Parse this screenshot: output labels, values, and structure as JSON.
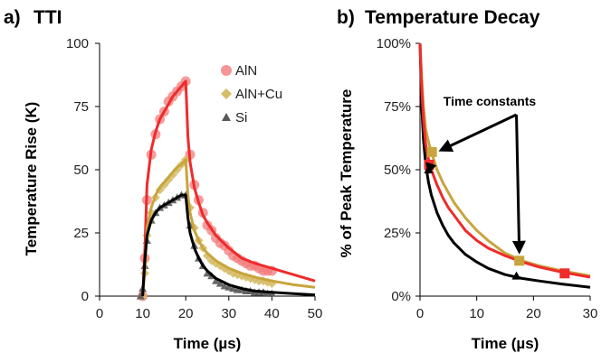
{
  "colors": {
    "AlN": "#ef2b2b",
    "AlN_marker": "#f27b7b",
    "AlN_Cu": "#c8a53c",
    "AlN_Cu_marker": "#d6bd68",
    "Si": "#000000",
    "Si_marker": "#595959"
  },
  "chart_data": [
    {
      "type": "scatter",
      "panel_label": "a)",
      "title": "TTI",
      "xlabel": "Time (µs)",
      "ylabel": "Temperature Rise (K)",
      "xlim": [
        0,
        50
      ],
      "ylim": [
        0,
        100
      ],
      "xticks": [
        "0",
        "10",
        "20",
        "30",
        "40",
        "50"
      ],
      "yticks": [
        "0",
        "25",
        "50",
        "75",
        "100"
      ],
      "grid": false,
      "legend_position": "top-right",
      "legend": [
        "AlN",
        "AlN+Cu",
        "Si"
      ],
      "series": [
        {
          "name": "AlN",
          "marker": "circle",
          "points": [
            [
              10,
              0
            ],
            [
              10.5,
              15
            ],
            [
              11,
              38
            ],
            [
              12,
              56
            ],
            [
              13,
              64
            ],
            [
              14,
              70
            ],
            [
              15,
              73
            ],
            [
              16,
              77
            ],
            [
              17,
              79
            ],
            [
              18,
              81
            ],
            [
              19,
              83
            ],
            [
              20,
              85
            ],
            [
              21,
              56
            ],
            [
              22,
              44
            ],
            [
              23,
              38
            ],
            [
              24,
              33
            ],
            [
              25,
              28
            ],
            [
              26,
              26
            ],
            [
              27,
              23
            ],
            [
              28,
              21
            ],
            [
              29,
              20
            ],
            [
              30,
              18
            ],
            [
              31,
              16
            ],
            [
              32,
              15
            ],
            [
              33,
              14
            ],
            [
              34,
              13
            ],
            [
              35,
              12
            ],
            [
              36,
              12
            ],
            [
              37,
              11
            ],
            [
              38,
              10
            ],
            [
              39,
              10
            ],
            [
              40,
              10
            ]
          ],
          "fit": [
            [
              10,
              0
            ],
            [
              10.5,
              18
            ],
            [
              11,
              44
            ],
            [
              12,
              58
            ],
            [
              13,
              65
            ],
            [
              14,
              70
            ],
            [
              15,
              73
            ],
            [
              16,
              76
            ],
            [
              17,
              79
            ],
            [
              18,
              81
            ],
            [
              19,
              83
            ],
            [
              20,
              85
            ],
            [
              20.5,
              63
            ],
            [
              21,
              53
            ],
            [
              22,
              43
            ],
            [
              23,
              37
            ],
            [
              24,
              32
            ],
            [
              25,
              29
            ],
            [
              27,
              24
            ],
            [
              30,
              19
            ],
            [
              33,
              15
            ],
            [
              36,
              13
            ],
            [
              40,
              11
            ],
            [
              45,
              8.5
            ],
            [
              50,
              6
            ]
          ]
        },
        {
          "name": "AlN+Cu",
          "marker": "diamond",
          "points": [
            [
              10,
              0
            ],
            [
              10.5,
              9
            ],
            [
              11,
              24
            ],
            [
              12,
              33
            ],
            [
              13,
              39
            ],
            [
              14,
              42
            ],
            [
              15,
              44
            ],
            [
              16,
              46
            ],
            [
              17,
              48
            ],
            [
              18,
              50
            ],
            [
              19,
              52
            ],
            [
              20,
              54
            ],
            [
              21,
              35
            ],
            [
              22,
              27
            ],
            [
              23,
              22
            ],
            [
              24,
              19
            ],
            [
              25,
              16
            ],
            [
              26,
              14
            ],
            [
              27,
              13
            ],
            [
              28,
              12
            ],
            [
              29,
              11
            ],
            [
              30,
              10
            ],
            [
              31,
              9
            ],
            [
              32,
              8.5
            ],
            [
              33,
              8
            ],
            [
              34,
              7.5
            ],
            [
              35,
              7
            ],
            [
              36,
              6.5
            ],
            [
              37,
              6
            ],
            [
              38,
              6
            ],
            [
              39,
              5.5
            ],
            [
              40,
              5
            ]
          ],
          "fit": [
            [
              10,
              0
            ],
            [
              10.5,
              10
            ],
            [
              11,
              27
            ],
            [
              12,
              35
            ],
            [
              13,
              40
            ],
            [
              14,
              43
            ],
            [
              15,
              45
            ],
            [
              16,
              47
            ],
            [
              17,
              49
            ],
            [
              18,
              51
            ],
            [
              19,
              52
            ],
            [
              20,
              54
            ],
            [
              20.5,
              40
            ],
            [
              21,
              33
            ],
            [
              22,
              26
            ],
            [
              23,
              22
            ],
            [
              24,
              19
            ],
            [
              25,
              17
            ],
            [
              27,
              14
            ],
            [
              30,
              11
            ],
            [
              33,
              9
            ],
            [
              36,
              7.5
            ],
            [
              40,
              6
            ],
            [
              45,
              4.5
            ],
            [
              50,
              3.5
            ]
          ]
        },
        {
          "name": "Si",
          "marker": "triangle",
          "points": [
            [
              9.5,
              0
            ],
            [
              10,
              3
            ],
            [
              10.5,
              12
            ],
            [
              11,
              22
            ],
            [
              12,
              30
            ],
            [
              13,
              33
            ],
            [
              14,
              35
            ],
            [
              15,
              36
            ],
            [
              16,
              37
            ],
            [
              17,
              38
            ],
            [
              18,
              39
            ],
            [
              19,
              40
            ],
            [
              20,
              40
            ],
            [
              21,
              28
            ],
            [
              22,
              20
            ],
            [
              23,
              15
            ],
            [
              24,
              12
            ],
            [
              25,
              9
            ],
            [
              26,
              8
            ],
            [
              27,
              6
            ],
            [
              28,
              5
            ],
            [
              29,
              4
            ],
            [
              30,
              3.5
            ],
            [
              31,
              3
            ],
            [
              32,
              2.5
            ],
            [
              33,
              2.5
            ],
            [
              34,
              2
            ],
            [
              35,
              2
            ],
            [
              36,
              1.5
            ],
            [
              37,
              1.5
            ],
            [
              38,
              1.5
            ],
            [
              39,
              1
            ],
            [
              40,
              1
            ]
          ],
          "fit": [
            [
              10,
              0
            ],
            [
              10.5,
              14
            ],
            [
              11,
              24
            ],
            [
              12,
              30
            ],
            [
              13,
              33
            ],
            [
              14,
              35
            ],
            [
              15,
              36
            ],
            [
              16,
              37
            ],
            [
              17,
              38
            ],
            [
              18,
              39
            ],
            [
              19,
              40
            ],
            [
              20,
              40
            ],
            [
              20.5,
              31
            ],
            [
              21,
              25
            ],
            [
              22,
              19
            ],
            [
              23,
              15
            ],
            [
              24,
              12
            ],
            [
              25,
              10
            ],
            [
              27,
              7
            ],
            [
              30,
              4.5
            ],
            [
              33,
              3
            ],
            [
              36,
              2
            ],
            [
              40,
              1.5
            ],
            [
              45,
              1
            ],
            [
              50,
              0.5
            ]
          ]
        }
      ]
    },
    {
      "type": "line",
      "panel_label": "b)",
      "title": "Temperature Decay",
      "xlabel": "Time (µs)",
      "ylabel": "% of Peak Temperature",
      "xlim": [
        0,
        30
      ],
      "ylim": [
        0,
        100
      ],
      "xticks": [
        "0",
        "10",
        "20",
        "30"
      ],
      "yticks": [
        "0%",
        "25%",
        "50%",
        "75%",
        "100%"
      ],
      "grid": false,
      "annotation": "Time constants",
      "series": [
        {
          "name": "AlN",
          "x": [
            0,
            0.3,
            0.6,
            1,
            1.5,
            2,
            3,
            4,
            5,
            6,
            8,
            10,
            12,
            15,
            18,
            21,
            25,
            30
          ],
          "y": [
            100,
            82,
            70,
            60,
            54,
            50,
            44,
            39,
            35,
            32,
            26,
            22,
            19,
            16,
            13.5,
            11.5,
            9.5,
            7.5
          ],
          "markers": [
            [
              1.6,
              52
            ],
            [
              25.5,
              9
            ]
          ]
        },
        {
          "name": "AlN+Cu",
          "x": [
            0,
            0.3,
            0.6,
            1,
            1.5,
            2,
            3,
            4,
            5,
            6,
            8,
            10,
            12,
            15,
            18,
            21,
            25,
            30
          ],
          "y": [
            100,
            86,
            75,
            66,
            61,
            57,
            50,
            45,
            41,
            37,
            31,
            26,
            22,
            17,
            14,
            12,
            10,
            8
          ],
          "markers": [
            [
              2.1,
              57
            ],
            [
              17.5,
              14
            ]
          ]
        },
        {
          "name": "Si",
          "x": [
            0,
            0.3,
            0.6,
            1,
            1.5,
            2,
            3,
            4,
            5,
            6,
            8,
            10,
            12,
            15,
            18,
            21,
            25,
            30
          ],
          "y": [
            100,
            75,
            62,
            52,
            45,
            40,
            33,
            28,
            24,
            21,
            16.5,
            13.5,
            11,
            8.5,
            7,
            6,
            4.8,
            3.5
          ],
          "markers": [
            [
              1.5,
              50
            ],
            [
              17,
              8
            ]
          ]
        }
      ]
    }
  ]
}
